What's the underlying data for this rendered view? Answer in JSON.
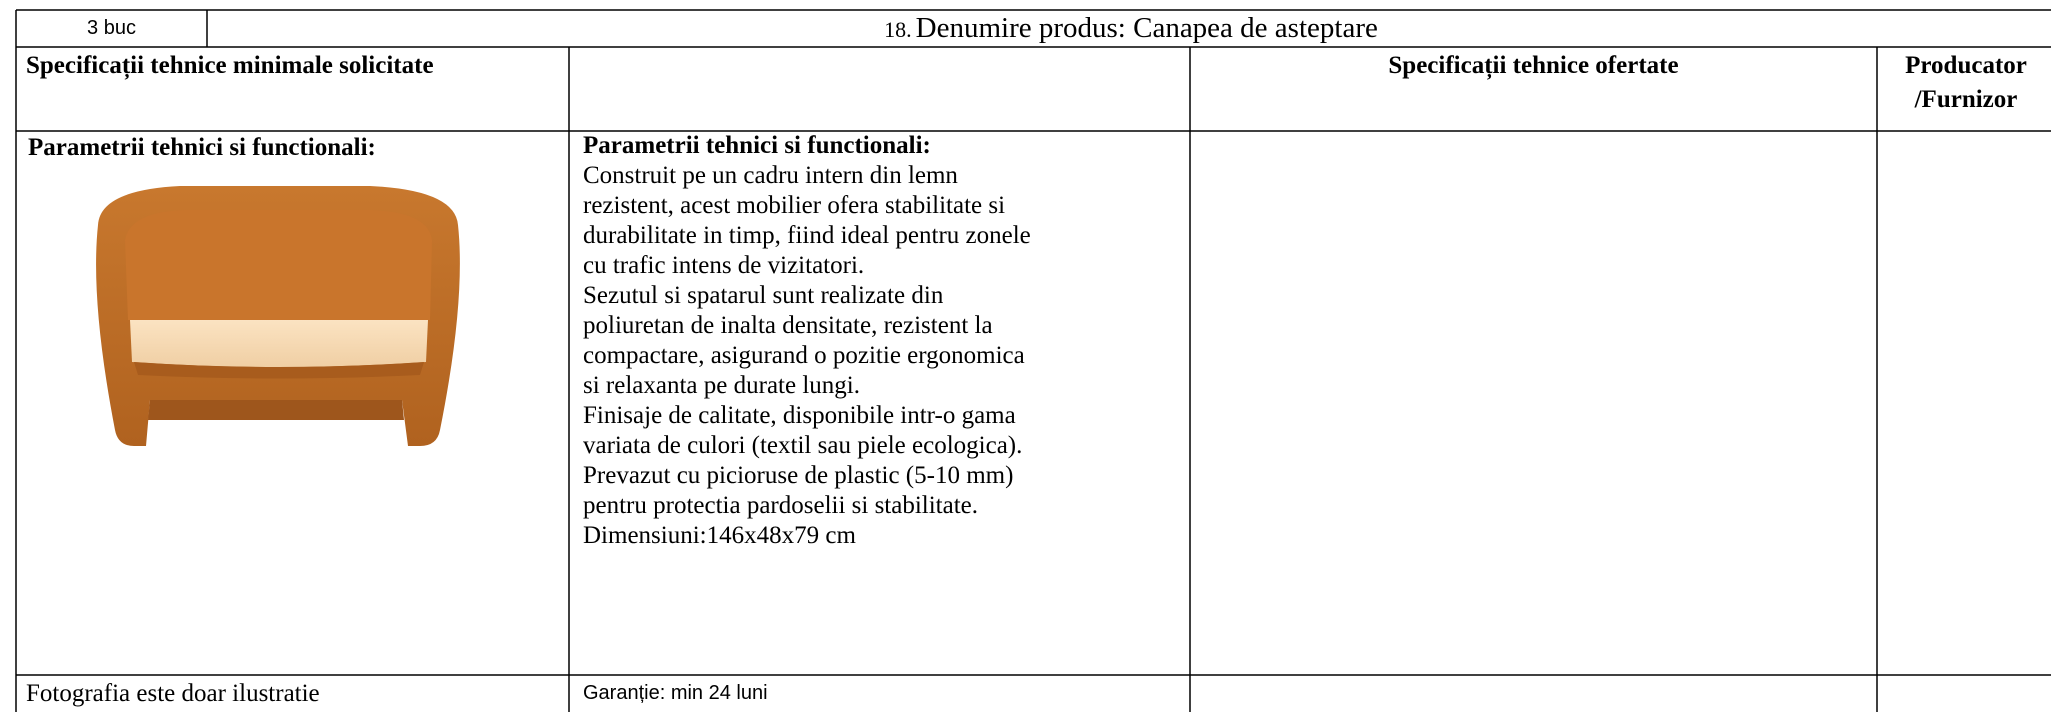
{
  "table": {
    "quantity": "3 buc",
    "title_number": "18.",
    "title_text": "Denumire produs: Canapea de asteptare",
    "headers": [
      "Specificații tehnice minimale solicitate",
      "Specificații tehnice ofertate",
      "Producator",
      "/Furnizor"
    ],
    "col1_heading": "Parametrii tehnici si functionali:",
    "col2_heading": "Parametrii tehnici si functionali:",
    "col2_lines": [
      "Construit pe un cadru intern din lemn",
      "rezistent, acest mobilier ofera stabilitate si",
      "durabilitate in timp, fiind ideal pentru zonele",
      "cu trafic intens de vizitatori.",
      "Sezutul si spatarul sunt realizate din",
      "poliuretan de inalta densitate, rezistent la",
      "compactare, asigurand o pozitie ergonomica",
      "si relaxanta pe durate lungi.",
      "Finisaje de calitate, disponibile intr-o gama",
      "variata de culori (textil sau piele ecologica).",
      "Prevazut cu picioruse de plastic (5-10 mm)",
      "pentru protectia pardoselii si stabilitate.",
      "Dimensiuni:146x48x79 cm"
    ],
    "photo_note": "Fotografia este doar ilustratie",
    "warranty": "Garanție: min 24 luni"
  }
}
